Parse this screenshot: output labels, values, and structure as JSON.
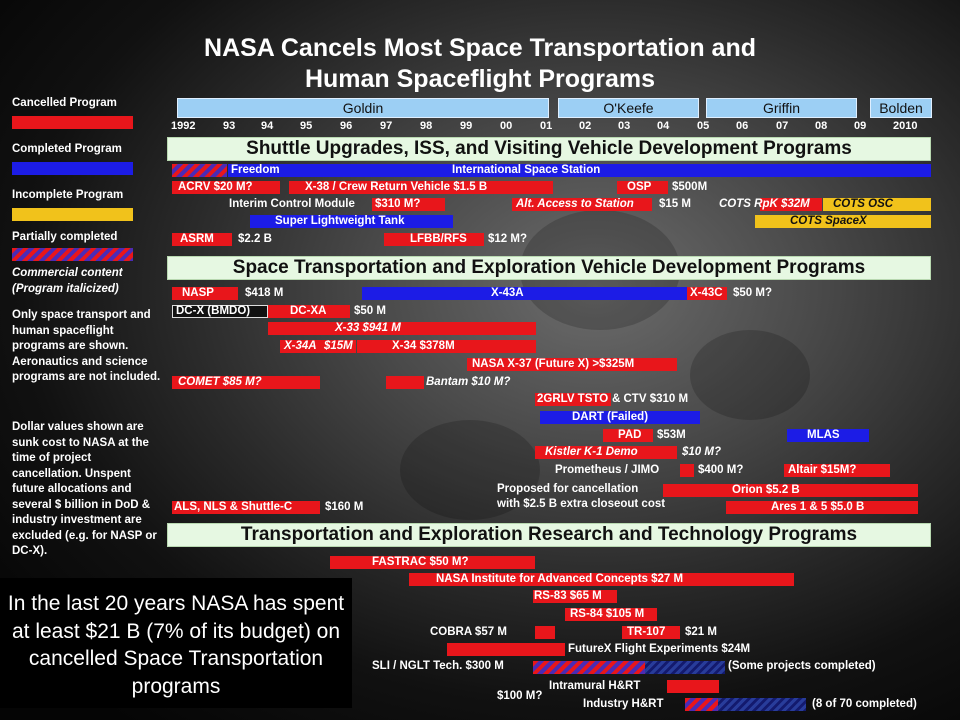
{
  "title": {
    "line1": "NASA Cancels Most Space Transportation and",
    "line2": "Human Spaceflight Programs"
  },
  "legend": {
    "cancelled": "Cancelled Program",
    "completed": "Completed Program",
    "incomplete": "Incomplete Program",
    "partial": "Partially completed",
    "commercial": "Commercial content (Program italicized)"
  },
  "notes": {
    "scope": "Only space transport and human spaceflight programs are shown. Aeronautics and science programs are not included.",
    "dollars": "Dollar values shown are sunk cost to NASA at the time of project cancellation. Unspent future allocations and several $ billion in DoD & industry investment are excluded (e.g. for NASP or DC-X)."
  },
  "summary": "In the last 20 years NASA has spent  at least $21 B (7% of its budget) on cancelled Space Transportation programs",
  "administrators": [
    "Goldin",
    "O'Keefe",
    "Griffin",
    "Bolden"
  ],
  "years": [
    "1992",
    "93",
    "94",
    "95",
    "96",
    "97",
    "98",
    "99",
    "00",
    "01",
    "02",
    "03",
    "04",
    "05",
    "06",
    "07",
    "08",
    "09",
    "2010"
  ],
  "sections": {
    "s1": "Shuttle Upgrades, ISS, and Visiting Vehicle Development Programs",
    "s2": "Space Transportation and Exploration Vehicle Development Programs",
    "s3": "Transportation and Exploration Research and Technology Programs"
  },
  "labels": {
    "freedom": "Freedom",
    "iss": "International Space Station",
    "acrv": "ACRV $20 M?",
    "x38": "X-38 / Crew Return Vehicle    $1.5 B",
    "osp": "OSP",
    "osp_cost": "$500M",
    "icm": "Interim Control Module",
    "icm_cost": "$310 M?",
    "alt": "Alt. Access to Station",
    "alt_cost": "$15 M",
    "cots_rpk": "COTS RpK $32M",
    "cots_osc": "COTS OSC",
    "slwt": "Super Lightweight Tank",
    "cots_spacex": "COTS SpaceX",
    "asrm": "ASRM",
    "asrm_cost": "$2.2 B",
    "lfbb": "LFBB/RFS",
    "lfbb_cost": "$12 M?",
    "nasp": "NASP",
    "nasp_cost": "$418 M",
    "x43a": "X-43A",
    "x43c": "X-43C",
    "x43c_cost": "$50 M?",
    "dcx": "DC-X (BMDO)",
    "dcxa": "DC-XA",
    "dcxa_cost": "$50 M",
    "x33": "X-33  $941 M",
    "x34a": "X-34A",
    "x34a_cost": "$15M",
    "x34": "X-34 $378M",
    "x37": "NASA X-37 (Future X) >$325M",
    "comet": "COMET $85 M?",
    "bantam": "Bantam $10 M?",
    "tsto": "2GRLV TSTO",
    "ctv": "& CTV  $310 M",
    "dart": "DART (Failed)",
    "pad": "PAD",
    "pad_cost": "$53M",
    "mlas": "MLAS",
    "kistler": "Kistler K-1 Demo",
    "kistler_cost": "$10 M?",
    "prometheus": "Prometheus / JIMO",
    "prometheus_cost": "$400 M?",
    "altair": "Altair $15M?",
    "proposed1": "Proposed for cancellation",
    "proposed2": "with $2.5 B extra closeout cost",
    "orion": "Orion  $5.2 B",
    "als": "ALS, NLS & Shuttle-C",
    "als_cost": "$160 M",
    "ares": "Ares 1 & 5  $5.0 B",
    "fastrac": "FASTRAC  $50 M?",
    "niac": "NASA Institute for Advanced Concepts  $27 M",
    "rs83": "RS-83  $65 M",
    "rs84": "RS-84  $105 M",
    "cobra": "COBRA  $57 M",
    "tr107": "TR-107",
    "tr107_cost": "$21 M",
    "futurex": "FutureX Flight Experiments $24M",
    "sli": "SLI / NGLT Tech. $300 M",
    "sli_note": "(Some projects completed)",
    "intramural_cost": "$100 M?",
    "intramural": "Intramural H&RT",
    "industry": "Industry H&RT",
    "industry_note": "(8 of 70 completed)"
  },
  "colors": {
    "cancelled": "#e8161b",
    "completed": "#1c1ce6",
    "incomplete": "#f1c21b",
    "section_bg": "#e6f8e2",
    "admin_bg": "#9ccff4"
  }
}
